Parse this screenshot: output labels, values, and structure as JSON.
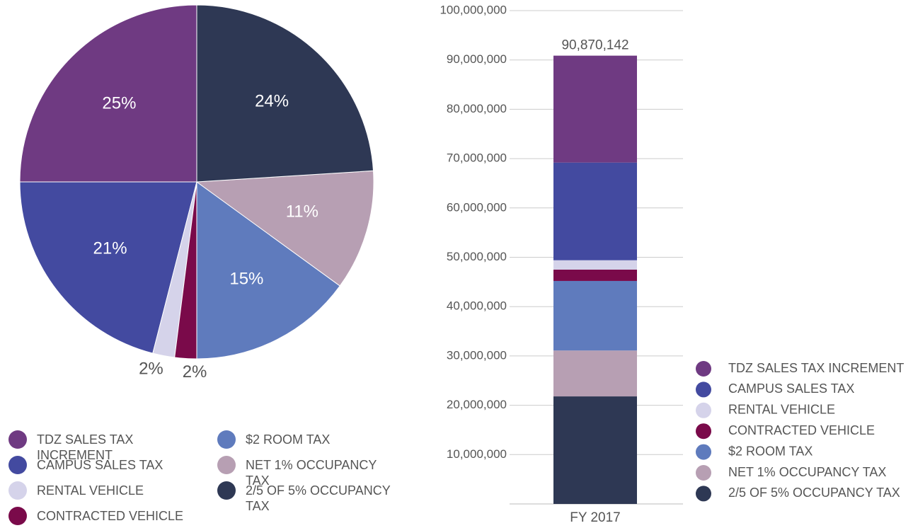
{
  "chart_data": [
    {
      "type": "pie",
      "categories": [
        "TDZ SALES TAX INCREMENT",
        "CAMPUS SALES TAX",
        "RENTAL VEHICLE",
        "CONTRACTED VEHICLE",
        "$2 ROOM TAX",
        "NET 1% OCCUPANCY TAX",
        "2/5 OF 5% OCCUPANCY TAX"
      ],
      "values": [
        25,
        21,
        2,
        2,
        15,
        11,
        24
      ],
      "value_labels": [
        "25%",
        "21%",
        "2%",
        "2%",
        "15%",
        "11%",
        "24%"
      ],
      "colors": [
        "#6f3a82",
        "#434aa0",
        "#d5d3ea",
        "#7a0a4a",
        "#5f7bbd",
        "#b79fb3",
        "#2e3854"
      ]
    },
    {
      "type": "bar",
      "categories": [
        "FY 2017"
      ],
      "total_label": "90,870,142",
      "series": [
        {
          "name": "2/5 OF 5% OCCUPANCY TAX",
          "color": "#2e3854",
          "values": [
            21800000
          ]
        },
        {
          "name": "NET 1% OCCUPANCY TAX",
          "color": "#b79fb3",
          "values": [
            9300000
          ]
        },
        {
          "name": "$2 ROOM TAX",
          "color": "#5f7bbd",
          "values": [
            14100000
          ]
        },
        {
          "name": "CONTRACTED VEHICLE",
          "color": "#7a0a4a",
          "values": [
            2300000
          ]
        },
        {
          "name": "RENTAL VEHICLE",
          "color": "#d5d3ea",
          "values": [
            1900000
          ]
        },
        {
          "name": "CAMPUS SALES TAX",
          "color": "#434aa0",
          "values": [
            19800000
          ]
        },
        {
          "name": "TDZ SALES TAX INCREMENT",
          "color": "#6f3a82",
          "values": [
            21670142
          ]
        }
      ],
      "ylim": [
        0,
        100000000
      ],
      "yticks": [
        {
          "value": 10000000,
          "label": "10,000,000"
        },
        {
          "value": 20000000,
          "label": "20,000,000"
        },
        {
          "value": 30000000,
          "label": "30,000,000"
        },
        {
          "value": 40000000,
          "label": "40,000,000"
        },
        {
          "value": 50000000,
          "label": "50,000,000"
        },
        {
          "value": 60000000,
          "label": "60,000,000"
        },
        {
          "value": 70000000,
          "label": "70,000,000"
        },
        {
          "value": 80000000,
          "label": "80,000,000"
        },
        {
          "value": 90000000,
          "label": "90,000,000"
        },
        {
          "value": 100000000,
          "label": "100,000,000"
        }
      ],
      "grid": true
    }
  ]
}
